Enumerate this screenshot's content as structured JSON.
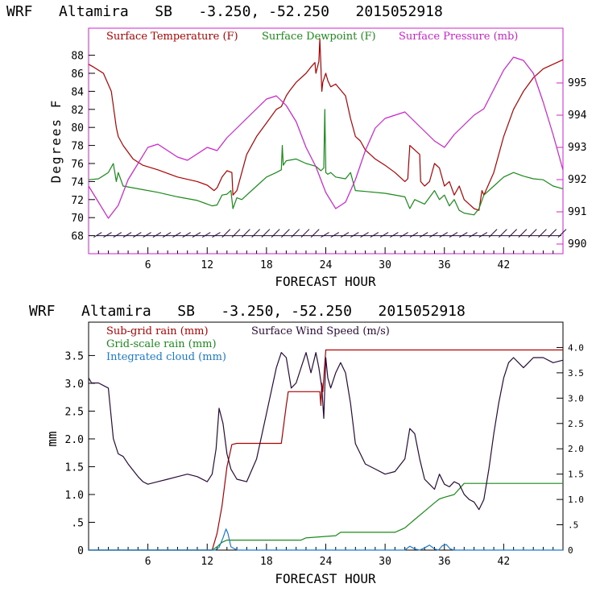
{
  "chart_data": [
    {
      "type": "line",
      "title": "WRF   Altamira   SB   -3.250, -52.250   2015052918",
      "xlabel": "FORECAST HOUR",
      "ylabel": "Degrees F",
      "y2label": "",
      "xlim": [
        0,
        48
      ],
      "ylim": [
        66,
        91
      ],
      "y2lim": [
        989.7,
        996.7
      ],
      "xticks": [
        "6",
        "12",
        "18",
        "24",
        "30",
        "36",
        "42"
      ],
      "yticks": [
        "68",
        "70",
        "72",
        "74",
        "76",
        "78",
        "80",
        "82",
        "84",
        "86",
        "88"
      ],
      "y2ticks": [
        "990",
        "991",
        "992",
        "993",
        "994",
        "995"
      ],
      "colors": {
        "temp": "#b00000",
        "dew": "#1a8a1a",
        "pres": "#d020d0",
        "wind": "#2a0a3a"
      },
      "series": [
        {
          "name": "Surface Temperature (F)",
          "axis": "left",
          "x": [
            0,
            0.5,
            1.5,
            2.3,
            2.8,
            3,
            3.5,
            4.5,
            5.5,
            7,
            9,
            11,
            12,
            12.7,
            13,
            13.5,
            14,
            14.5,
            14.6,
            15,
            15.5,
            16,
            17,
            18,
            19,
            19.5,
            20,
            20.3,
            21,
            22,
            22.5,
            22.9,
            23,
            23.3,
            23.4,
            23.6,
            23.7,
            24,
            24.2,
            24.5,
            25,
            26,
            26.5,
            27,
            27.5,
            28,
            29,
            30,
            31,
            32,
            32.3,
            32.5,
            33.5,
            33.6,
            34,
            34.5,
            35,
            35.5,
            36,
            36.5,
            37,
            37.5,
            38,
            39,
            39.5,
            39.8,
            40,
            41,
            42,
            43,
            44,
            45,
            46,
            47,
            48
          ],
          "y": [
            87,
            86.7,
            86,
            84,
            80,
            79,
            78,
            76.5,
            75.8,
            75.3,
            74.5,
            74,
            73.6,
            73,
            73.3,
            74.5,
            75.2,
            75,
            72.5,
            73,
            75,
            77,
            79,
            80.5,
            82,
            82.3,
            83.5,
            84,
            85,
            86,
            86.7,
            87.2,
            86,
            87.3,
            89.8,
            84,
            85,
            86,
            85.2,
            84.5,
            84.8,
            83.5,
            81,
            79,
            78.5,
            77.5,
            76.5,
            75.8,
            75,
            74,
            74.3,
            78,
            77,
            74,
            73.5,
            74,
            76,
            75.5,
            73.5,
            74,
            72.5,
            73.5,
            72,
            71,
            70.8,
            73,
            72.5,
            75,
            79,
            82,
            84,
            85.5,
            86.5,
            87,
            87.5
          ]
        },
        {
          "name": "Surface Dewpoint (F)",
          "axis": "left",
          "x": [
            0,
            1,
            2,
            2.5,
            2.8,
            3,
            3.5,
            5,
            7,
            9,
            11,
            12,
            12.5,
            13,
            13.5,
            14,
            14.4,
            14.6,
            15,
            15.5,
            16,
            17,
            18,
            19,
            19.5,
            19.6,
            19.7,
            20,
            21,
            22,
            23,
            23.5,
            23.8,
            23.9,
            24,
            24.2,
            24.5,
            25,
            26,
            26.5,
            27,
            28,
            30,
            32,
            32.5,
            33,
            34,
            35,
            35.5,
            36,
            36.5,
            37,
            37.5,
            38,
            39,
            39.5,
            40,
            41,
            42,
            43,
            44,
            45,
            46,
            47,
            48
          ],
          "y": [
            74.2,
            74.3,
            75,
            76,
            74,
            75,
            73.5,
            73.2,
            72.8,
            72.3,
            71.9,
            71.5,
            71.3,
            71.4,
            72.5,
            72.6,
            73,
            71,
            72.2,
            72,
            72.5,
            73.5,
            74.5,
            75,
            75.3,
            78,
            75.8,
            76.3,
            76.5,
            76,
            75.7,
            75.2,
            75.5,
            82,
            75,
            74.8,
            75,
            74.5,
            74.3,
            75,
            73,
            72.9,
            72.7,
            72.3,
            71,
            72,
            71.5,
            73,
            72,
            72.5,
            71.3,
            72,
            70.8,
            70.5,
            70.3,
            71,
            72.5,
            73.5,
            74.5,
            75,
            74.6,
            74.3,
            74.2,
            73.5,
            73.2
          ]
        },
        {
          "name": "Surface Pressure (mb)",
          "axis": "right",
          "x": [
            0,
            1,
            2,
            3,
            4,
            5,
            6,
            7,
            8,
            9,
            10,
            11,
            12,
            13,
            14,
            15,
            16,
            17,
            18,
            19,
            20,
            21,
            22,
            23,
            24,
            25,
            26,
            27,
            28,
            29,
            30,
            31,
            32,
            33,
            34,
            35,
            36,
            37,
            38,
            39,
            40,
            41,
            42,
            43,
            44,
            45,
            46,
            47,
            48
          ],
          "y": [
            991.8,
            991.3,
            990.8,
            991.2,
            992.0,
            992.5,
            993.0,
            993.1,
            992.9,
            992.7,
            992.6,
            992.8,
            993.0,
            992.9,
            993.3,
            993.6,
            993.9,
            994.2,
            994.5,
            994.6,
            994.3,
            993.8,
            993.0,
            992.4,
            991.6,
            991.1,
            991.3,
            992.0,
            992.9,
            993.6,
            993.9,
            994.0,
            994.1,
            993.8,
            993.5,
            993.2,
            993.0,
            993.4,
            993.7,
            994.0,
            994.2,
            994.8,
            995.4,
            995.8,
            995.7,
            995.3,
            994.4,
            993.4,
            992.3
          ]
        }
      ],
      "wind_barbs": {
        "x": [
          1,
          2,
          3,
          4,
          5,
          6,
          7,
          8,
          9,
          10,
          11,
          12,
          13,
          14,
          15,
          16,
          17,
          18,
          19,
          20,
          21,
          22,
          23,
          24,
          25,
          26,
          27,
          28,
          29,
          30,
          31,
          32,
          33,
          34,
          35,
          36,
          37,
          38,
          39,
          40,
          41,
          42,
          43,
          44,
          45,
          46,
          47,
          48
        ],
        "y_level": 68
      },
      "legend": "top"
    },
    {
      "type": "line",
      "title": "WRF   Altamira   SB   -3.250, -52.250   2015052918",
      "xlabel": "FORECAST HOUR",
      "ylabel": "mm",
      "xlim": [
        0,
        48
      ],
      "ylim": [
        0,
        4.1
      ],
      "y2lim": [
        0,
        4.5
      ],
      "xticks": [
        "6",
        "12",
        "18",
        "24",
        "30",
        "36",
        "42"
      ],
      "yticks": [
        "0",
        ".5",
        "1.0",
        "1.5",
        "2.0",
        "2.5",
        "3.0",
        "3.5"
      ],
      "y2ticks": [
        "0",
        ".5",
        "1.0",
        "1.5",
        "2.0",
        "2.5",
        "3.0",
        "3.5",
        "4.0"
      ],
      "series": [
        {
          "name": "Sub-grid rain (mm)",
          "axis": "left",
          "x": [
            0,
            12.5,
            13,
            13.5,
            14,
            14.5,
            15,
            19.5,
            20,
            20.2,
            23,
            23.4,
            23.5,
            23.6,
            23.7,
            24,
            48
          ],
          "y": [
            0,
            0,
            0.3,
            0.8,
            1.5,
            1.9,
            1.92,
            1.92,
            2.6,
            2.85,
            2.85,
            2.85,
            2.6,
            3.0,
            2.85,
            3.6,
            3.6
          ]
        },
        {
          "name": "Grid-scale rain (mm)",
          "axis": "left",
          "x": [
            0,
            12.5,
            13,
            13.5,
            14,
            21.5,
            22,
            25,
            25.5,
            31,
            32,
            33,
            34,
            35,
            35.5,
            36,
            37,
            38,
            48
          ],
          "y": [
            0,
            0,
            0.06,
            0.14,
            0.18,
            0.18,
            0.22,
            0.26,
            0.32,
            0.32,
            0.4,
            0.55,
            0.7,
            0.85,
            0.92,
            0.95,
            1.0,
            1.2,
            1.2
          ]
        },
        {
          "name": "Integrated cloud (mm)",
          "axis": "left",
          "x": [
            0,
            12.8,
            13.2,
            13.6,
            13.9,
            14.1,
            14.4,
            14.8,
            15.1,
            32,
            32.5,
            33,
            33.5,
            34,
            34.5,
            35,
            35.4,
            35.8,
            36.2,
            36.6,
            37,
            48
          ],
          "y": [
            0,
            0,
            0.05,
            0.22,
            0.38,
            0.3,
            0.06,
            0.02,
            0,
            0,
            0.07,
            0.02,
            0,
            0.04,
            0.09,
            0.02,
            0,
            0.08,
            0.1,
            0.02,
            0,
            0
          ]
        },
        {
          "name": "Surface Wind Speed (m/s)",
          "axis": "right",
          "x": [
            0,
            0.3,
            1,
            2,
            2.5,
            3,
            3.5,
            4,
            5,
            5.5,
            6,
            7,
            8,
            9,
            10,
            11,
            12,
            12.5,
            12.9,
            13.2,
            13.6,
            14,
            14.4,
            15,
            16,
            17,
            18,
            19,
            19.5,
            20,
            20.5,
            21,
            21.5,
            22,
            22.5,
            23,
            23.3,
            23.6,
            23.8,
            24,
            24.2,
            24.5,
            25,
            25.5,
            26,
            26.5,
            27,
            28,
            29,
            30,
            31,
            32,
            32.5,
            33,
            33.5,
            34,
            34.5,
            35,
            35.5,
            36,
            36.5,
            37,
            37.5,
            38,
            38.5,
            39,
            39.5,
            40,
            40.5,
            41,
            41.5,
            42,
            42.5,
            43,
            44,
            44.5,
            45,
            46,
            47,
            48
          ],
          "y": [
            3.4,
            3.3,
            3.3,
            3.2,
            2.2,
            1.9,
            1.85,
            1.7,
            1.45,
            1.35,
            1.3,
            1.35,
            1.4,
            1.45,
            1.5,
            1.45,
            1.35,
            1.5,
            2.0,
            2.8,
            2.5,
            1.9,
            1.6,
            1.4,
            1.35,
            1.8,
            2.7,
            3.6,
            3.9,
            3.8,
            3.2,
            3.3,
            3.6,
            3.9,
            3.5,
            3.9,
            3.6,
            3.2,
            2.6,
            3.8,
            3.4,
            3.2,
            3.5,
            3.7,
            3.5,
            2.9,
            2.1,
            1.7,
            1.6,
            1.5,
            1.55,
            1.8,
            2.4,
            2.3,
            1.8,
            1.4,
            1.3,
            1.2,
            1.5,
            1.3,
            1.25,
            1.35,
            1.3,
            1.1,
            1.0,
            0.95,
            0.8,
            1.0,
            1.6,
            2.3,
            2.9,
            3.4,
            3.7,
            3.8,
            3.6,
            3.7,
            3.8,
            3.8,
            3.7,
            3.75
          ]
        }
      ],
      "legend": "top-left"
    }
  ]
}
